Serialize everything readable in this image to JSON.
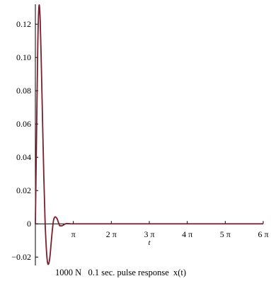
{
  "chart_data": {
    "type": "line",
    "title": "",
    "caption": "1000 N   0.1 sec. pulse response  x(t)",
    "xlabel": "t",
    "ylabel": "",
    "xlim": [
      0,
      18.85
    ],
    "ylim": [
      -0.025,
      0.132
    ],
    "x_ticks": [
      {
        "value": 3.1416,
        "label": "π"
      },
      {
        "value": 6.2832,
        "label": "2 π"
      },
      {
        "value": 9.4248,
        "label": "3 π"
      },
      {
        "value": 12.5664,
        "label": "4 π"
      },
      {
        "value": 15.708,
        "label": "5 π"
      },
      {
        "value": 18.8496,
        "label": "6 π"
      }
    ],
    "y_ticks": [
      {
        "value": -0.02,
        "label": "−0.02"
      },
      {
        "value": 0,
        "label": "0"
      },
      {
        "value": 0.02,
        "label": "0.02"
      },
      {
        "value": 0.04,
        "label": "0.04"
      },
      {
        "value": 0.06,
        "label": "0.06"
      },
      {
        "value": 0.08,
        "label": "0.08"
      },
      {
        "value": 0.1,
        "label": "0.10"
      },
      {
        "value": 0.12,
        "label": "0.12"
      }
    ],
    "grid": false,
    "line_color": "#7a1f2b",
    "series": [
      {
        "x": [
          0,
          0.1,
          0.2,
          0.3,
          0.4,
          0.5,
          0.6,
          0.7,
          0.8,
          0.9,
          1.0,
          1.1,
          1.2,
          1.3,
          1.4,
          1.5,
          1.6,
          1.7,
          1.8,
          1.9,
          2.0,
          2.1,
          2.2,
          2.3,
          2.4,
          2.5,
          2.6,
          2.8,
          3.0,
          3.2,
          3.4,
          3.6,
          3.8,
          4.0,
          4.2,
          4.5,
          5.0,
          6.0,
          8.0,
          12.0,
          16.0,
          18.85
        ],
        "y": [
          0,
          0.055,
          0.108,
          0.131,
          0.122,
          0.093,
          0.06,
          0.028,
          0.002,
          -0.014,
          -0.023,
          -0.024,
          -0.02,
          -0.012,
          -0.004,
          0.002,
          0.004,
          0.004,
          0.003,
          0.001,
          -0.001,
          -0.0012,
          -0.0012,
          -0.0008,
          -0.0003,
          0.0,
          0.0002,
          0.0001,
          0,
          0,
          0,
          0,
          0,
          0,
          0,
          0,
          0,
          0,
          0,
          0,
          0,
          0
        ]
      }
    ]
  }
}
